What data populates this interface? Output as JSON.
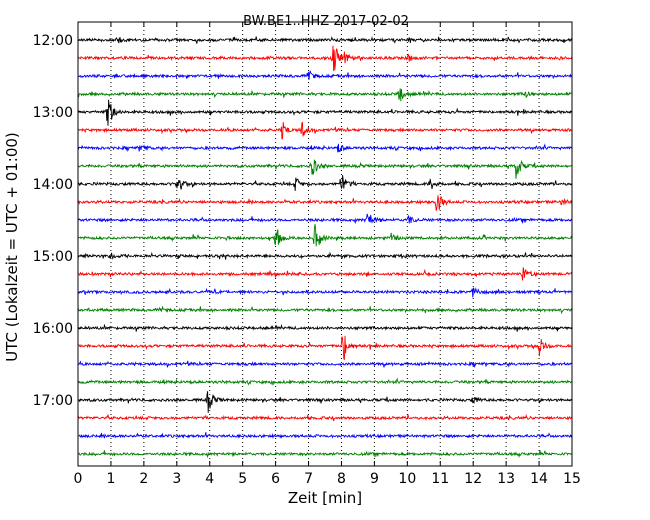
{
  "chart_data": {
    "type": "line",
    "title": "BW.BE1..HHZ 2017-02-02",
    "xlabel": "Zeit  [min]",
    "ylabel": "UTC (Lokalzeit = UTC + 01:00)",
    "xlim": [
      0,
      15
    ],
    "x_ticks": [
      "0",
      "1",
      "2",
      "3",
      "4",
      "5",
      "6",
      "7",
      "8",
      "9",
      "10",
      "11",
      "12",
      "13",
      "14",
      "15"
    ],
    "y_ticks": [
      "12:00",
      "13:00",
      "14:00",
      "15:00",
      "16:00",
      "17:00"
    ],
    "grid": "vertical-dotted",
    "row_interval_min": 15,
    "colors": [
      "#000000",
      "#ff0000",
      "#0000ff",
      "#008000"
    ],
    "traces": [
      {
        "start": "12:00",
        "color": "#000000",
        "events": [
          {
            "min": 1.2,
            "amp": 0.15
          }
        ]
      },
      {
        "start": "12:15",
        "color": "#ff0000",
        "events": [
          {
            "min": 7.75,
            "amp": 0.9
          },
          {
            "min": 8.1,
            "amp": 0.25
          },
          {
            "min": 10.0,
            "amp": 0.2
          }
        ]
      },
      {
        "start": "12:30",
        "color": "#0000ff",
        "events": [
          {
            "min": 7.0,
            "amp": 0.2
          }
        ]
      },
      {
        "start": "12:45",
        "color": "#008000",
        "events": [
          {
            "min": 9.75,
            "amp": 0.5
          },
          {
            "min": 13.6,
            "amp": 0.15
          }
        ]
      },
      {
        "start": "13:00",
        "color": "#000000",
        "events": [
          {
            "min": 0.9,
            "amp": 0.8
          }
        ]
      },
      {
        "start": "13:15",
        "color": "#ff0000",
        "events": [
          {
            "min": 6.2,
            "amp": 0.4
          },
          {
            "min": 6.8,
            "amp": 0.4
          }
        ]
      },
      {
        "start": "13:30",
        "color": "#0000ff",
        "events": [
          {
            "min": 1.9,
            "amp": 0.2
          },
          {
            "min": 7.9,
            "amp": 0.2
          }
        ]
      },
      {
        "start": "13:45",
        "color": "#008000",
        "events": [
          {
            "min": 7.1,
            "amp": 0.55
          },
          {
            "min": 13.3,
            "amp": 0.6
          }
        ]
      },
      {
        "start": "14:00",
        "color": "#000000",
        "events": [
          {
            "min": 3.0,
            "amp": 0.6
          },
          {
            "min": 6.6,
            "amp": 0.3
          },
          {
            "min": 8.0,
            "amp": 0.5
          },
          {
            "min": 10.7,
            "amp": 0.3
          }
        ]
      },
      {
        "start": "14:15",
        "color": "#ff0000",
        "events": [
          {
            "min": 10.9,
            "amp": 0.6
          },
          {
            "min": 14.7,
            "amp": 0.2
          }
        ]
      },
      {
        "start": "14:30",
        "color": "#0000ff",
        "events": [
          {
            "min": 8.8,
            "amp": 0.5
          },
          {
            "min": 10.0,
            "amp": 0.25
          }
        ]
      },
      {
        "start": "14:45",
        "color": "#008000",
        "events": [
          {
            "min": 6.0,
            "amp": 0.6
          },
          {
            "min": 7.2,
            "amp": 0.7
          },
          {
            "min": 9.5,
            "amp": 0.2
          }
        ]
      },
      {
        "start": "15:00",
        "color": "#000000",
        "events": [
          {
            "min": 1.0,
            "amp": 0.15
          }
        ]
      },
      {
        "start": "15:15",
        "color": "#ff0000",
        "events": [
          {
            "min": 13.5,
            "amp": 0.35
          }
        ]
      },
      {
        "start": "15:30",
        "color": "#0000ff",
        "events": [
          {
            "min": 12.0,
            "amp": 0.25
          }
        ]
      },
      {
        "start": "15:45",
        "color": "#008000",
        "events": []
      },
      {
        "start": "16:00",
        "color": "#000000",
        "events": []
      },
      {
        "start": "16:15",
        "color": "#ff0000",
        "events": [
          {
            "min": 8.05,
            "amp": 0.9
          },
          {
            "min": 14.0,
            "amp": 0.45
          }
        ]
      },
      {
        "start": "16:30",
        "color": "#0000ff",
        "events": []
      },
      {
        "start": "16:45",
        "color": "#008000",
        "events": []
      },
      {
        "start": "17:00",
        "color": "#000000",
        "events": [
          {
            "min": 3.95,
            "amp": 0.55
          },
          {
            "min": 12.0,
            "amp": 0.15
          }
        ]
      },
      {
        "start": "17:15",
        "color": "#ff0000",
        "events": []
      },
      {
        "start": "17:30",
        "color": "#0000ff",
        "events": []
      },
      {
        "start": "17:45",
        "color": "#008000",
        "events": []
      }
    ]
  }
}
